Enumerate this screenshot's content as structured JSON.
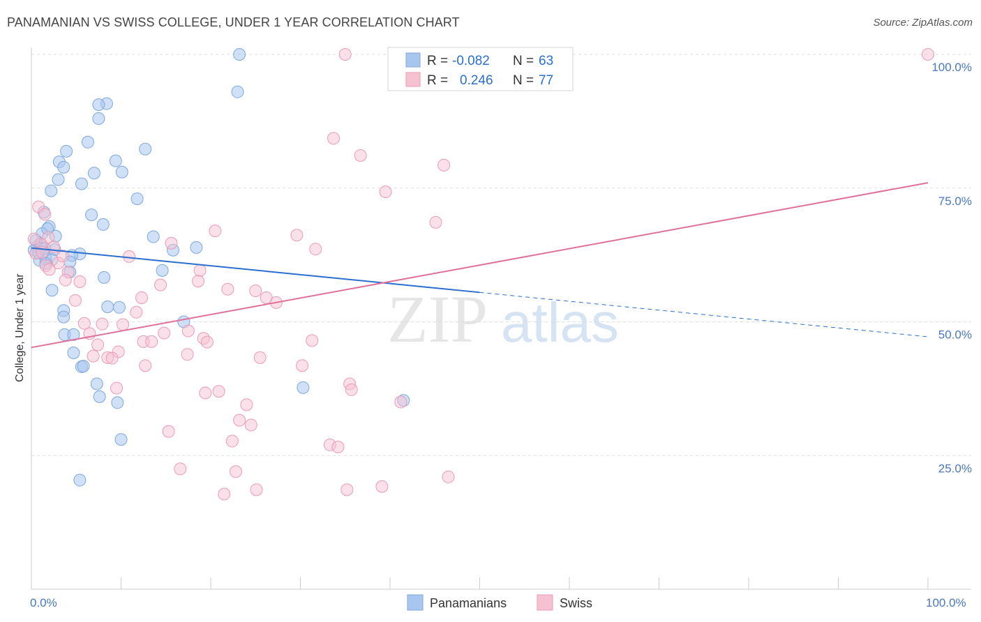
{
  "header": {
    "title": "PANAMANIAN VS SWISS COLLEGE, UNDER 1 YEAR CORRELATION CHART",
    "source": "Source: ZipAtlas.com"
  },
  "watermark": {
    "zip": "ZIP",
    "atlas": "atlas"
  },
  "colors": {
    "blue_fill": "#a9c6ef",
    "blue_stroke": "#7ea8de",
    "blue_line": "#2a6fd0",
    "pink_fill": "#f6c2d2",
    "pink_stroke": "#ec9bb5",
    "pink_line": "#e0709a",
    "tick_text": "#4a78c2",
    "grid": "#dddddd"
  },
  "stats_legend": {
    "rows": [
      {
        "r_label": "R =",
        "r_value": "-0.082",
        "n_label": "N =",
        "n_value": "63"
      },
      {
        "r_label": "R =",
        "r_value": "0.246",
        "n_label": "N =",
        "n_value": "77"
      }
    ]
  },
  "chart_data": {
    "type": "scatter",
    "title": "PANAMANIAN VS SWISS COLLEGE, UNDER 1 YEAR CORRELATION CHART",
    "xlabel": "",
    "ylabel": "College, Under 1 year",
    "xlim": [
      0,
      100
    ],
    "ylim": [
      0,
      100
    ],
    "x_tick_labels": [
      "0.0%",
      "100.0%"
    ],
    "y_tick_values": [
      25,
      50,
      75,
      100
    ],
    "y_tick_labels": [
      "25.0%",
      "50.0%",
      "75.0%",
      "100.0%"
    ],
    "grid": true,
    "legend_position": "bottom",
    "series": [
      {
        "name": "Panamanians",
        "color": "#a9c6ef",
        "trend": {
          "x0": 0,
          "y0": 63.8,
          "x1": 50,
          "y1": 55.5,
          "dashed_to_x": 100,
          "dashed_to_y": 47.2
        },
        "points": [
          [
            23.2,
            100
          ],
          [
            23.0,
            93
          ],
          [
            8.4,
            90.8
          ],
          [
            7.5,
            90.6
          ],
          [
            7.5,
            88
          ],
          [
            6.3,
            83.6
          ],
          [
            12.7,
            82.3
          ],
          [
            3.9,
            81.9
          ],
          [
            9.4,
            80.1
          ],
          [
            3.1,
            79.9
          ],
          [
            3.6,
            78.9
          ],
          [
            10.1,
            78.0
          ],
          [
            7.0,
            77.8
          ],
          [
            3.0,
            76.6
          ],
          [
            5.6,
            75.8
          ],
          [
            2.2,
            74.5
          ],
          [
            11.8,
            73.0
          ],
          [
            1.4,
            70.5
          ],
          [
            6.7,
            70.0
          ],
          [
            8.0,
            68.2
          ],
          [
            2.0,
            67.8
          ],
          [
            1.2,
            66.5
          ],
          [
            2.7,
            66.0
          ],
          [
            13.6,
            65.9
          ],
          [
            1.0,
            64.6
          ],
          [
            0.6,
            64.0
          ],
          [
            0.3,
            63.4
          ],
          [
            18.4,
            63.9
          ],
          [
            15.8,
            63.4
          ],
          [
            1.1,
            63.8
          ],
          [
            2.6,
            63.5
          ],
          [
            5.4,
            62.7
          ],
          [
            4.5,
            62.4
          ],
          [
            1.6,
            61.8
          ],
          [
            2.3,
            61.6
          ],
          [
            0.9,
            61.5
          ],
          [
            1.6,
            60.9
          ],
          [
            4.3,
            61.2
          ],
          [
            14.6,
            59.6
          ],
          [
            4.3,
            59.3
          ],
          [
            8.1,
            58.3
          ],
          [
            2.3,
            55.9
          ],
          [
            8.5,
            52.8
          ],
          [
            9.8,
            52.7
          ],
          [
            3.6,
            52.1
          ],
          [
            3.6,
            50.9
          ],
          [
            17.0,
            50.0
          ],
          [
            3.7,
            47.6
          ],
          [
            4.7,
            47.6
          ],
          [
            4.7,
            44.2
          ],
          [
            5.6,
            41.6
          ],
          [
            5.8,
            41.7
          ],
          [
            7.3,
            38.4
          ],
          [
            30.3,
            37.7
          ],
          [
            7.6,
            36.0
          ],
          [
            9.6,
            34.9
          ],
          [
            41.5,
            35.3
          ],
          [
            10.0,
            28.0
          ],
          [
            5.4,
            20.4
          ],
          [
            1.8,
            67.4
          ],
          [
            0.5,
            65.2
          ],
          [
            0.8,
            62.9
          ],
          [
            1.5,
            63.7
          ]
        ]
      },
      {
        "name": "Swiss",
        "color": "#f6c2d2",
        "trend": {
          "x0": 0,
          "y0": 45.2,
          "x1": 100,
          "y1": 76.0
        },
        "points": [
          [
            35.0,
            100
          ],
          [
            100.0,
            100
          ],
          [
            33.7,
            84.3
          ],
          [
            36.7,
            81.1
          ],
          [
            46.0,
            79.3
          ],
          [
            39.5,
            74.3
          ],
          [
            0.8,
            71.5
          ],
          [
            1.5,
            70.1
          ],
          [
            45.1,
            68.6
          ],
          [
            20.5,
            67.0
          ],
          [
            29.6,
            66.2
          ],
          [
            1.9,
            65.8
          ],
          [
            15.6,
            64.7
          ],
          [
            31.7,
            63.6
          ],
          [
            1.1,
            64.5
          ],
          [
            10.9,
            62.2
          ],
          [
            3.0,
            61.0
          ],
          [
            18.8,
            59.6
          ],
          [
            1.6,
            60.5
          ],
          [
            4.1,
            59.3
          ],
          [
            3.8,
            57.8
          ],
          [
            5.4,
            57.5
          ],
          [
            18.6,
            57.6
          ],
          [
            14.4,
            56.9
          ],
          [
            21.9,
            56.1
          ],
          [
            25.0,
            55.8
          ],
          [
            12.3,
            54.5
          ],
          [
            26.2,
            54.5
          ],
          [
            27.3,
            53.6
          ],
          [
            4.9,
            54.0
          ],
          [
            11.7,
            51.8
          ],
          [
            5.9,
            49.7
          ],
          [
            7.9,
            49.6
          ],
          [
            10.2,
            49.5
          ],
          [
            14.8,
            47.9
          ],
          [
            6.5,
            47.8
          ],
          [
            17.5,
            48.3
          ],
          [
            19.2,
            46.9
          ],
          [
            12.5,
            46.3
          ],
          [
            13.4,
            46.3
          ],
          [
            31.3,
            46.5
          ],
          [
            19.6,
            46.2
          ],
          [
            7.4,
            45.7
          ],
          [
            9.7,
            44.4
          ],
          [
            6.9,
            43.6
          ],
          [
            8.5,
            43.3
          ],
          [
            17.4,
            43.9
          ],
          [
            25.5,
            43.3
          ],
          [
            9.0,
            43.2
          ],
          [
            12.7,
            41.8
          ],
          [
            30.2,
            41.8
          ],
          [
            35.5,
            38.4
          ],
          [
            9.5,
            37.6
          ],
          [
            19.4,
            36.7
          ],
          [
            20.9,
            37.0
          ],
          [
            35.7,
            37.3
          ],
          [
            24.0,
            34.5
          ],
          [
            41.2,
            35.0
          ],
          [
            23.2,
            31.6
          ],
          [
            24.5,
            30.7
          ],
          [
            15.3,
            29.5
          ],
          [
            22.4,
            27.7
          ],
          [
            33.3,
            27.0
          ],
          [
            34.2,
            26.6
          ],
          [
            16.6,
            22.5
          ],
          [
            22.8,
            22.0
          ],
          [
            46.5,
            21.0
          ],
          [
            25.1,
            18.6
          ],
          [
            35.2,
            18.6
          ],
          [
            39.1,
            19.2
          ],
          [
            21.5,
            17.8
          ],
          [
            0.3,
            65.5
          ],
          [
            0.5,
            62.8
          ],
          [
            2.5,
            64.0
          ],
          [
            1.2,
            63.0
          ],
          [
            3.5,
            62.3
          ],
          [
            2.0,
            59.8
          ]
        ]
      }
    ]
  },
  "bottom_legend": {
    "items": [
      "Panamanians",
      "Swiss"
    ]
  }
}
